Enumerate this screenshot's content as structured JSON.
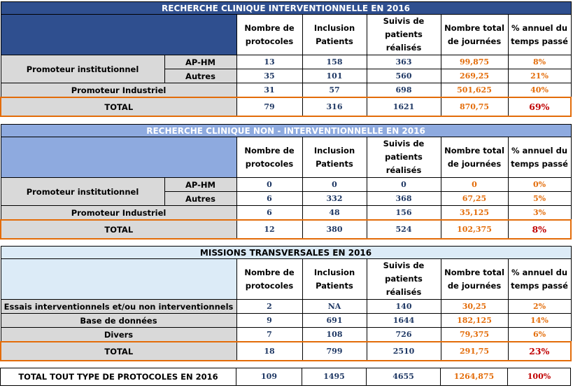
{
  "columns": [
    "Nombre de protocoles",
    "Inclusion Patients",
    "Suivis de patients réalisés",
    "Nombre total de journées",
    "% annuel du temps passé"
  ],
  "table1": {
    "title": "RECHERCHE CLINIQUE INTERVENTIONNELLE EN 2016",
    "inst_label": "Promoteur institutionnel",
    "rows": [
      {
        "sub": "AP-HM",
        "values": [
          "13",
          "158",
          "363",
          "99,875",
          "8%"
        ]
      },
      {
        "sub": "Autres",
        "values": [
          "35",
          "101",
          "560",
          "269,25",
          "21%"
        ]
      }
    ],
    "industriel": {
      "label": "Promoteur Industriel",
      "values": [
        "31",
        "57",
        "698",
        "501,625",
        "40%"
      ]
    },
    "total": {
      "label": "TOTAL",
      "values": [
        "79",
        "316",
        "1621",
        "870,75",
        "69%"
      ]
    }
  },
  "table2": {
    "title": "RECHERCHE CLINIQUE NON - INTERVENTIONNELLE EN 2016",
    "inst_label": "Promoteur institutionnel",
    "rows": [
      {
        "sub": "AP-HM",
        "values": [
          "0",
          "0",
          "0",
          "0",
          "0%"
        ]
      },
      {
        "sub": "Autres",
        "values": [
          "6",
          "332",
          "368",
          "67,25",
          "5%"
        ]
      }
    ],
    "industriel": {
      "label": "Promoteur Industriel",
      "values": [
        "6",
        "48",
        "156",
        "35,125",
        "3%"
      ]
    },
    "total": {
      "label": "TOTAL",
      "values": [
        "12",
        "380",
        "524",
        "102,375",
        "8%"
      ]
    }
  },
  "table3": {
    "title": "MISSIONS TRANSVERSALES EN 2016",
    "rows": [
      {
        "label": "Essais interventionnels et/ou non interventionnels",
        "values": [
          "2",
          "NA",
          "140",
          "30,25",
          "2%"
        ]
      },
      {
        "label": "Base de données",
        "values": [
          "9",
          "691",
          "1644",
          "182,125",
          "14%"
        ]
      },
      {
        "label": "Divers",
        "values": [
          "7",
          "108",
          "726",
          "79,375",
          "6%"
        ]
      }
    ],
    "total": {
      "label": "TOTAL",
      "values": [
        "18",
        "799",
        "2510",
        "291,75",
        "23%"
      ]
    }
  },
  "grand_total": {
    "label": "TOTAL TOUT TYPE DE PROTOCOLES EN 2016",
    "values": [
      "109",
      "1495",
      "4655",
      "1264,875",
      "100%"
    ]
  }
}
